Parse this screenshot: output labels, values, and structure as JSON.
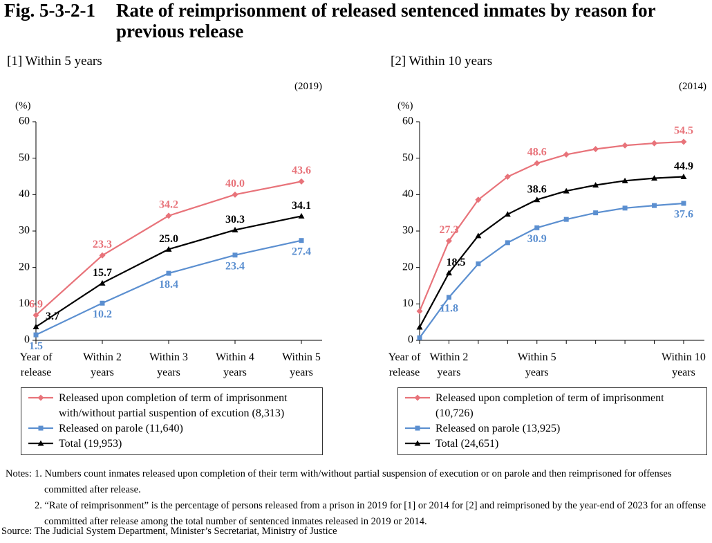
{
  "figure": "Fig. 5-3-2-1",
  "title": "Rate of reimprisonment of released sentenced inmates by reason for previous release",
  "chart_data": [
    {
      "type": "line",
      "subtitle": "[1] Within 5 years",
      "note": "(2019)",
      "ylabel": "(%)",
      "categories": [
        "Year of release",
        "Within 2 years",
        "Within 3 years",
        "Within 4 years",
        "Within 5 years"
      ],
      "ylim": [
        0,
        60
      ],
      "yticks": [
        0,
        10,
        20,
        30,
        40,
        50,
        60
      ],
      "series": [
        {
          "name": "Released upon completion of term of imprisonment with/without partial suspention of excution (8,313)",
          "color": "#e8737a",
          "marker": "diamond",
          "values": [
            6.9,
            23.3,
            34.2,
            40.0,
            43.6
          ],
          "value_labels": [
            "6.9",
            "23.3",
            "34.2",
            "40.0",
            "43.6"
          ]
        },
        {
          "name": "Released on parole (11,640)",
          "color": "#5b8fd0",
          "marker": "square",
          "values": [
            1.5,
            10.2,
            18.4,
            23.4,
            27.4
          ],
          "value_labels": [
            "1.5",
            "10.2",
            "18.4",
            "23.4",
            "27.4"
          ]
        },
        {
          "name": "Total (19,953)",
          "color": "#000000",
          "marker": "triangle",
          "values": [
            3.7,
            15.7,
            25.0,
            30.3,
            34.1
          ],
          "value_labels": [
            "3.7",
            "15.7",
            "25.0",
            "30.3",
            "34.1"
          ]
        }
      ]
    },
    {
      "type": "line",
      "subtitle": "[2] Within 10 years",
      "note": "(2014)",
      "ylabel": "(%)",
      "categories": [
        "Year of release",
        "Within 2 years",
        null,
        null,
        "Within 5 years",
        null,
        null,
        null,
        null,
        "Within 10 years"
      ],
      "ylim": [
        0,
        60
      ],
      "yticks": [
        0,
        10,
        20,
        30,
        40,
        50,
        60
      ],
      "series": [
        {
          "name": "Released upon completion of term of imprisonment (10,726)",
          "color": "#e8737a",
          "marker": "diamond",
          "values": [
            8.0,
            27.3,
            38.6,
            44.9,
            48.6,
            51.0,
            52.5,
            53.5,
            54.1,
            54.5
          ],
          "value_labels": [
            null,
            "27.3",
            null,
            null,
            "48.6",
            null,
            null,
            null,
            null,
            "54.5"
          ]
        },
        {
          "name": "Released on parole (13,925)",
          "color": "#5b8fd0",
          "marker": "square",
          "values": [
            0.7,
            11.8,
            21.0,
            26.8,
            30.9,
            33.2,
            35.0,
            36.3,
            37.0,
            37.6
          ],
          "value_labels": [
            null,
            "11.8",
            null,
            null,
            "30.9",
            null,
            null,
            null,
            null,
            "37.6"
          ]
        },
        {
          "name": "Total (24,651)",
          "color": "#000000",
          "marker": "triangle",
          "values": [
            3.6,
            18.5,
            28.7,
            34.6,
            38.6,
            41.0,
            42.6,
            43.8,
            44.5,
            44.9
          ],
          "value_labels": [
            null,
            "18.5",
            null,
            null,
            "38.6",
            null,
            null,
            null,
            null,
            "44.9"
          ]
        }
      ]
    }
  ],
  "notes_heading": "Notes:",
  "notes": [
    "1. Numbers count inmates released upon completion of their term with/without partial suspension of execution or on parole and then reimprisoned for offenses committed after release.",
    "2. “Rate of reimprisonment” is the percentage of persons released from a prison in 2019 for [1] or 2014 for [2] and reimprisoned by the year-end of 2023 for an offense committed after release among the total number of sentenced inmates released in 2019 or 2014."
  ],
  "source": "Source: The Judicial System Department, Minister’s Secretariat, Ministry of Justice"
}
